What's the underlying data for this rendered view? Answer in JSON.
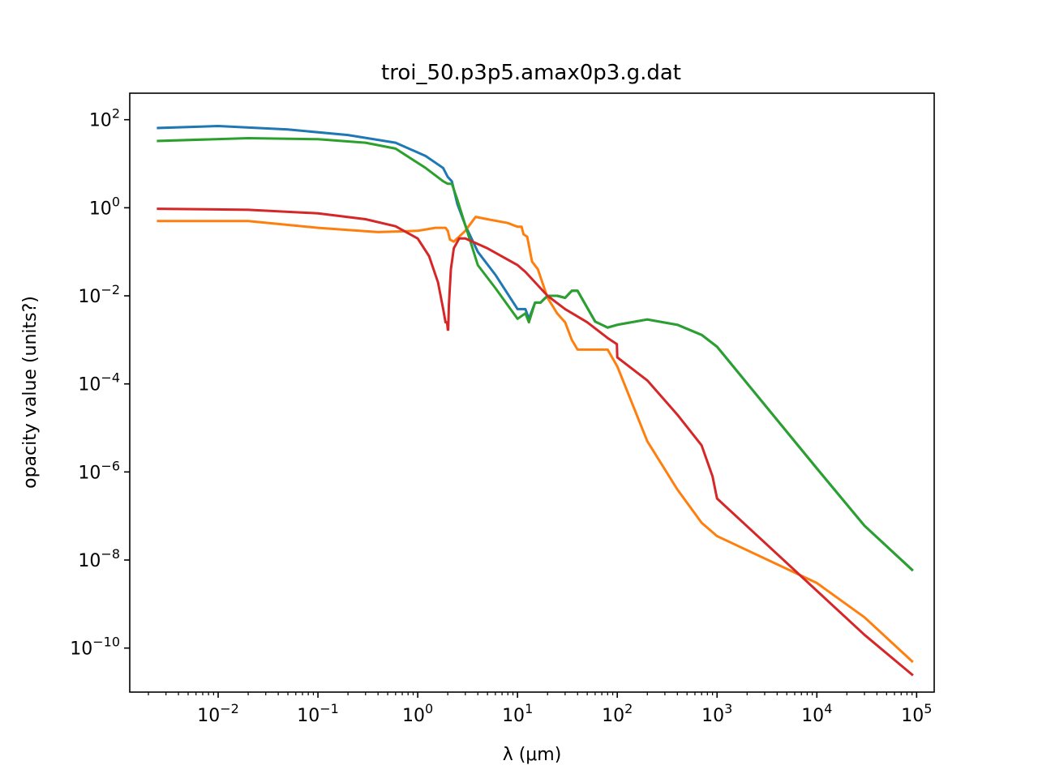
{
  "chart_data": {
    "type": "line",
    "title": "troi_50.p3p5.amax0p3.g.dat",
    "xlabel": "λ (μm)",
    "ylabel": "opacity value (units?)",
    "x_scale": "log",
    "y_scale": "log",
    "xlim": [
      0.0013,
      150000
    ],
    "ylim": [
      1e-11,
      400
    ],
    "grid": false,
    "x_ticks": [
      {
        "value": 0.01,
        "base": "10",
        "exp": "−2"
      },
      {
        "value": 0.1,
        "base": "10",
        "exp": "−1"
      },
      {
        "value": 1,
        "base": "10",
        "exp": "0"
      },
      {
        "value": 10,
        "base": "10",
        "exp": "1"
      },
      {
        "value": 100,
        "base": "10",
        "exp": "2"
      },
      {
        "value": 1000,
        "base": "10",
        "exp": "3"
      },
      {
        "value": 10000,
        "base": "10",
        "exp": "4"
      },
      {
        "value": 100000,
        "base": "10",
        "exp": "5"
      }
    ],
    "y_ticks": [
      {
        "value": 100,
        "base": "10",
        "exp": "2"
      },
      {
        "value": 1,
        "base": "10",
        "exp": "0"
      },
      {
        "value": 0.01,
        "base": "10",
        "exp": "−2"
      },
      {
        "value": 0.0001,
        "base": "10",
        "exp": "−4"
      },
      {
        "value": 1e-06,
        "base": "10",
        "exp": "−6"
      },
      {
        "value": 1e-08,
        "base": "10",
        "exp": "−8"
      },
      {
        "value": 1e-10,
        "base": "10",
        "exp": "−10"
      }
    ],
    "series": [
      {
        "color": "#1f77b4",
        "points": [
          [
            0.0025,
            65
          ],
          [
            0.01,
            72
          ],
          [
            0.05,
            60
          ],
          [
            0.2,
            45
          ],
          [
            0.6,
            30
          ],
          [
            1.2,
            15
          ],
          [
            1.8,
            8
          ],
          [
            2.0,
            5
          ],
          [
            2.2,
            4
          ],
          [
            2.5,
            1.2
          ],
          [
            3,
            0.4
          ],
          [
            4,
            0.1
          ],
          [
            6,
            0.03
          ],
          [
            10,
            0.005
          ],
          [
            12,
            0.005
          ],
          [
            13,
            0.003
          ],
          [
            15,
            0.007
          ],
          [
            17,
            0.007
          ],
          [
            20,
            0.01
          ],
          [
            25,
            0.01
          ],
          [
            30,
            0.009
          ],
          [
            35,
            0.013
          ],
          [
            40,
            0.013
          ],
          [
            60,
            0.0026
          ],
          [
            80,
            0.0019
          ],
          [
            100,
            0.0022
          ],
          [
            200,
            0.0029
          ],
          [
            400,
            0.0022
          ],
          [
            700,
            0.0013
          ],
          [
            1000,
            0.0007
          ],
          [
            10000,
            1.2e-06
          ],
          [
            30000,
            6e-08
          ],
          [
            90000,
            6e-09
          ]
        ]
      },
      {
        "color": "#ff7f0e",
        "points": [
          [
            0.0025,
            0.5
          ],
          [
            0.02,
            0.5
          ],
          [
            0.1,
            0.35
          ],
          [
            0.4,
            0.28
          ],
          [
            1.0,
            0.3
          ],
          [
            1.5,
            0.35
          ],
          [
            1.9,
            0.35
          ],
          [
            2.0,
            0.3
          ],
          [
            2.1,
            0.19
          ],
          [
            2.3,
            0.17
          ],
          [
            3,
            0.3
          ],
          [
            3.8,
            0.62
          ],
          [
            5,
            0.55
          ],
          [
            8,
            0.45
          ],
          [
            10,
            0.37
          ],
          [
            11,
            0.37
          ],
          [
            11.5,
            0.25
          ],
          [
            12.5,
            0.22
          ],
          [
            14,
            0.06
          ],
          [
            16,
            0.04
          ],
          [
            20,
            0.009
          ],
          [
            25,
            0.004
          ],
          [
            30,
            0.0025
          ],
          [
            35,
            0.001
          ],
          [
            40,
            0.0006
          ],
          [
            80,
            0.0006
          ],
          [
            100,
            0.00025
          ],
          [
            200,
            5e-06
          ],
          [
            400,
            4e-07
          ],
          [
            700,
            7e-08
          ],
          [
            1000,
            3.5e-08
          ],
          [
            10000,
            3e-09
          ],
          [
            30000,
            5e-10
          ],
          [
            90000,
            5e-11
          ]
        ]
      },
      {
        "color": "#2ca02c",
        "points": [
          [
            0.0025,
            33
          ],
          [
            0.02,
            38
          ],
          [
            0.1,
            36
          ],
          [
            0.3,
            30
          ],
          [
            0.6,
            22
          ],
          [
            1.2,
            8
          ],
          [
            1.8,
            4
          ],
          [
            2.0,
            3.5
          ],
          [
            2.2,
            3.5
          ],
          [
            2.5,
            1.5
          ],
          [
            3,
            0.4
          ],
          [
            4,
            0.05
          ],
          [
            6,
            0.015
          ],
          [
            10,
            0.003
          ],
          [
            12,
            0.004
          ],
          [
            13,
            0.0025
          ],
          [
            15,
            0.007
          ],
          [
            17,
            0.007
          ],
          [
            20,
            0.01
          ],
          [
            25,
            0.01
          ],
          [
            30,
            0.009
          ],
          [
            35,
            0.013
          ],
          [
            40,
            0.013
          ],
          [
            60,
            0.0026
          ],
          [
            80,
            0.0019
          ],
          [
            100,
            0.0022
          ],
          [
            200,
            0.0029
          ],
          [
            400,
            0.0022
          ],
          [
            700,
            0.0013
          ],
          [
            1000,
            0.0007
          ],
          [
            10000,
            1.2e-06
          ],
          [
            30000,
            6e-08
          ],
          [
            90000,
            6e-09
          ]
        ]
      },
      {
        "color": "#d62728",
        "points": [
          [
            0.0025,
            0.95
          ],
          [
            0.02,
            0.9
          ],
          [
            0.1,
            0.75
          ],
          [
            0.3,
            0.55
          ],
          [
            0.6,
            0.38
          ],
          [
            1.0,
            0.2
          ],
          [
            1.3,
            0.08
          ],
          [
            1.6,
            0.02
          ],
          [
            1.8,
            0.005
          ],
          [
            1.9,
            0.0025
          ],
          [
            1.97,
            0.0025
          ],
          [
            2.0,
            0.0017
          ],
          [
            2.02,
            0.0017
          ],
          [
            2.05,
            0.006
          ],
          [
            2.15,
            0.04
          ],
          [
            2.3,
            0.12
          ],
          [
            2.6,
            0.2
          ],
          [
            3,
            0.2
          ],
          [
            5,
            0.12
          ],
          [
            10,
            0.05
          ],
          [
            12,
            0.035
          ],
          [
            20,
            0.01
          ],
          [
            30,
            0.005
          ],
          [
            50,
            0.0025
          ],
          [
            80,
            0.0011
          ],
          [
            99,
            0.0008
          ],
          [
            100,
            0.0004
          ],
          [
            200,
            0.00012
          ],
          [
            400,
            2e-05
          ],
          [
            700,
            4e-06
          ],
          [
            900,
            8e-07
          ],
          [
            1000,
            2.5e-07
          ],
          [
            10000,
            2e-09
          ],
          [
            30000,
            2e-10
          ],
          [
            90000,
            2.5e-11
          ]
        ]
      }
    ]
  }
}
